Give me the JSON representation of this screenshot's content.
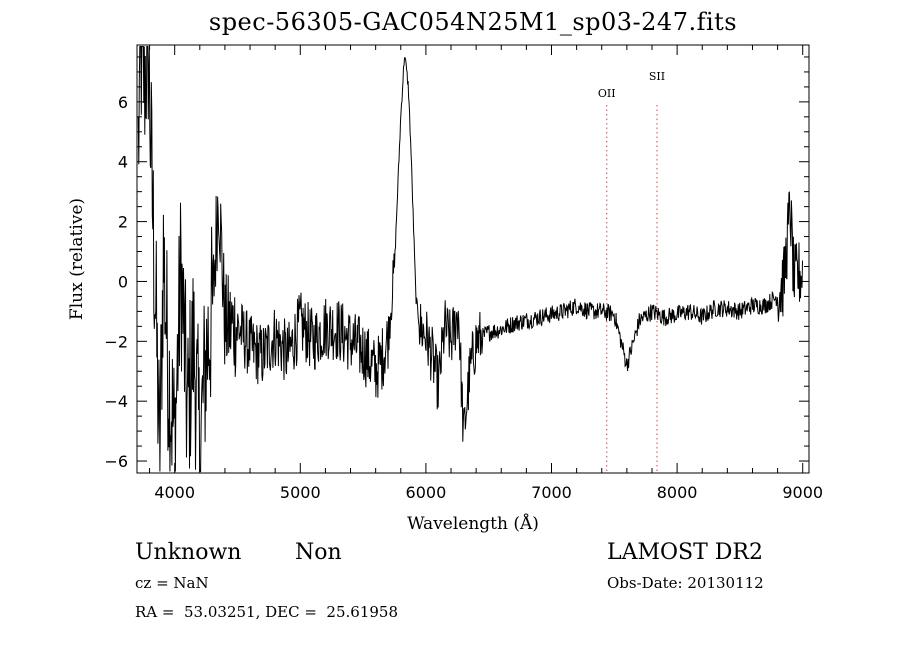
{
  "chart_data": {
    "type": "line",
    "title": "spec-56305-GAC054N25M1_sp03-247.fits",
    "xlabel": "Wavelength (Å)",
    "ylabel": "Flux (relative)",
    "xlim": [
      3700,
      9050
    ],
    "ylim": [
      -6.4,
      7.9
    ],
    "x_ticks": [
      4000,
      5000,
      6000,
      7000,
      8000,
      9000
    ],
    "x_tick_labels": [
      "4000",
      "5000",
      "6000",
      "7000",
      "8000",
      "9000"
    ],
    "y_ticks": [
      -6,
      -4,
      -2,
      0,
      2,
      4,
      6
    ],
    "y_tick_labels": [
      "−6",
      "−4",
      "−2",
      "0",
      "2",
      "4",
      "6"
    ],
    "grid": false,
    "line_color": "#000000",
    "spectrum_key_points": [
      [
        3710,
        4.5
      ],
      [
        3730,
        7.8
      ],
      [
        3760,
        6.8
      ],
      [
        3790,
        7.9
      ],
      [
        3820,
        3.0
      ],
      [
        3850,
        -1.0
      ],
      [
        3880,
        -6.0
      ],
      [
        3910,
        1.0
      ],
      [
        3950,
        -3.0
      ],
      [
        4000,
        -5.4
      ],
      [
        4050,
        0.5
      ],
      [
        4100,
        -4.5
      ],
      [
        4150,
        -2.0
      ],
      [
        4200,
        -5.6
      ],
      [
        4250,
        -2.5
      ],
      [
        4300,
        -1.0
      ],
      [
        4350,
        3.1
      ],
      [
        4400,
        -1.5
      ],
      [
        4500,
        -1.5
      ],
      [
        4600,
        -2.2
      ],
      [
        4700,
        -2.5
      ],
      [
        4800,
        -1.8
      ],
      [
        4900,
        -2.5
      ],
      [
        5000,
        -1.4
      ],
      [
        5100,
        -2.0
      ],
      [
        5200,
        -1.5
      ],
      [
        5300,
        -1.6
      ],
      [
        5400,
        -2.0
      ],
      [
        5500,
        -2.3
      ],
      [
        5600,
        -3.0
      ],
      [
        5650,
        -2.6
      ],
      [
        5700,
        -1.8
      ],
      [
        5750,
        0.5
      ],
      [
        5780,
        3.5
      ],
      [
        5800,
        5.5
      ],
      [
        5830,
        7.6
      ],
      [
        5860,
        6.5
      ],
      [
        5880,
        4.5
      ],
      [
        5900,
        2.0
      ],
      [
        5920,
        -0.5
      ],
      [
        5950,
        -1.5
      ],
      [
        6000,
        -1.8
      ],
      [
        6050,
        -2.5
      ],
      [
        6100,
        -3.5
      ],
      [
        6150,
        -1.5
      ],
      [
        6200,
        -2.0
      ],
      [
        6260,
        -1.0
      ],
      [
        6300,
        -5.2
      ],
      [
        6350,
        -3.0
      ],
      [
        6400,
        -2.0
      ],
      [
        6500,
        -1.7
      ],
      [
        6600,
        -1.6
      ],
      [
        6700,
        -1.4
      ],
      [
        6800,
        -1.3
      ],
      [
        6900,
        -1.2
      ],
      [
        7000,
        -1.1
      ],
      [
        7100,
        -1.0
      ],
      [
        7200,
        -0.8
      ],
      [
        7300,
        -1.0
      ],
      [
        7400,
        -1.0
      ],
      [
        7500,
        -1.1
      ],
      [
        7600,
        -2.8
      ],
      [
        7700,
        -1.3
      ],
      [
        7800,
        -1.0
      ],
      [
        7900,
        -1.2
      ],
      [
        8000,
        -1.1
      ],
      [
        8100,
        -1.0
      ],
      [
        8200,
        -1.2
      ],
      [
        8300,
        -0.9
      ],
      [
        8400,
        -0.9
      ],
      [
        8500,
        -1.0
      ],
      [
        8600,
        -0.8
      ],
      [
        8700,
        -0.8
      ],
      [
        8800,
        -0.5
      ],
      [
        8850,
        0.0
      ],
      [
        8900,
        2.5
      ],
      [
        8930,
        0.0
      ],
      [
        8960,
        0.2
      ],
      [
        9000,
        0.3
      ]
    ],
    "lines": [
      {
        "label": "OII",
        "x": 7440
      },
      {
        "label": "SII",
        "x": 7840
      }
    ],
    "line_marker_color": "#d24b4b"
  },
  "info": {
    "class": "Unknown",
    "subclass": "Non",
    "survey": "LAMOST DR2",
    "cz": "cz = NaN",
    "obs_date": "Obs-Date: 20130112",
    "coords": "RA =  53.03251, DEC =  25.61958"
  }
}
